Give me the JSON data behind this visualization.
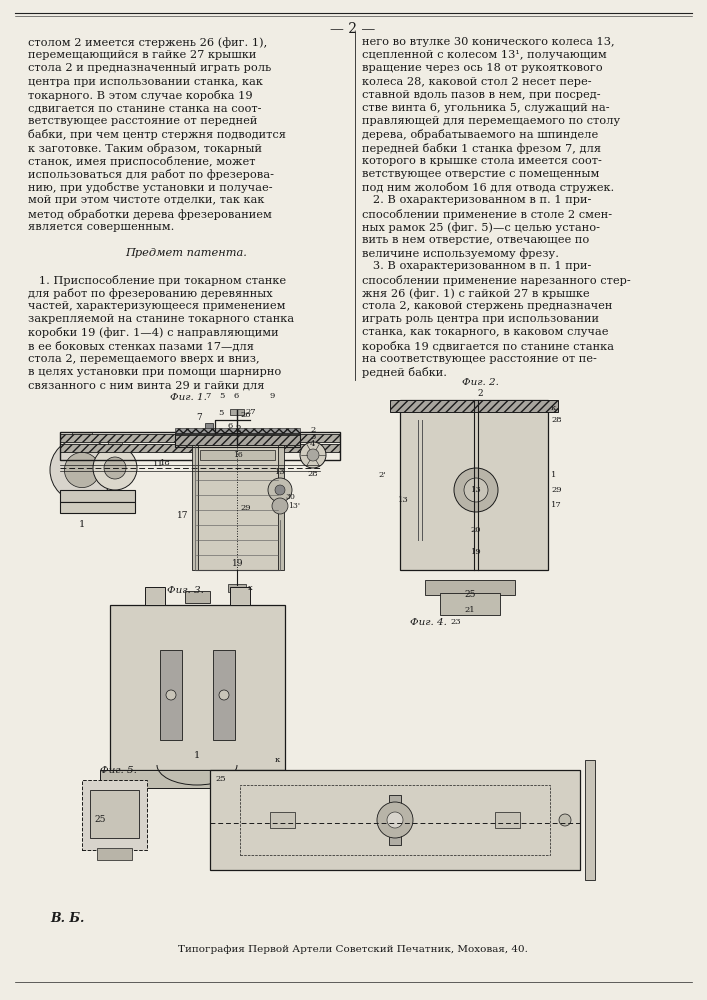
{
  "page_number": "— 2 —",
  "background_color": "#f0ede4",
  "text_color": "#1a1a1a",
  "border_color": "#222222",
  "left_column_text": [
    "столом 2 имеется стержень 26 (фиг. 1),",
    "перемещающийся в гайке 27 крышки",
    "стола 2 и предназначенный играть роль",
    "центра при использовании станка, как",
    "токарного. В этом случае коробка 19",
    "сдвигается по станине станка на соот-",
    "ветствующее расстояние от передней",
    "бабки, при чем центр стержня подводится",
    "к заготовке. Таким образом, токарный",
    "станок, имея приспособление, может",
    "использоваться для работ по фрезерова-",
    "нию, при удобстве установки и получае-",
    "мой при этом чистоте отделки, так как",
    "метод обработки дерева фрезерованием",
    "является совершенным.",
    "",
    "Предмет патента.",
    "",
    "   1. Приспособление при токарном станке",
    "для работ по фрезерованию деревянных",
    "частей, характеризующееся применением",
    "закрепляемой на станине токарного станка",
    "коробки 19 (фиг. 1—4) с направляющими",
    "в ее боковых стенках пазами 17—для",
    "стола 2, перемещаемого вверх и вниз,",
    "в целях установки при помощи шарнирно",
    "связанного с ним винта 29 и гайки для"
  ],
  "right_column_text": [
    "него во втулке 30 конического колеса 13,",
    "сцепленной с колесом 13¹, получающим",
    "вращение через ось 18 от рукояткового",
    "колеса 28, каковой стол 2 несет пере-",
    "ставной вдоль пазов в нем, при посред-",
    "стве винта 6, угольника 5, служащий на-",
    "правляющей для перемещаемого по столу",
    "дерева, обрабатываемого на шпинделе",
    "передней бабки 1 станка фрезом 7, для",
    "которого в крышке стола имеется соот-",
    "ветствующее отверстие с помещенным",
    "под ним жолобом 16 для отвода стружек.",
    "   2. В охарактеризованном в п. 1 при-",
    "способлении применение в столе 2 смен-",
    "ных рамок 25 (фиг. 5)—с целью устано-",
    "вить в нем отверстие, отвечающее по",
    "величине используемому фрезу.",
    "   3. В охарактеризованном в п. 1 при-",
    "способлении применение нарезанного стер-",
    "жня 26 (фиг. 1) с гайкой 27 в крышке",
    "стола 2, каковой стержень предназначен",
    "играть роль центра при использовании",
    "станка, как токарного, в каковом случае",
    "коробка 19 сдвигается по станине станка",
    "на соответствующее расстояние от пе-",
    "редней бабки."
  ],
  "footer_left": "В. Б.",
  "footer_center": "Типография Первой Артели Советский Печатник, Моховая, 40."
}
